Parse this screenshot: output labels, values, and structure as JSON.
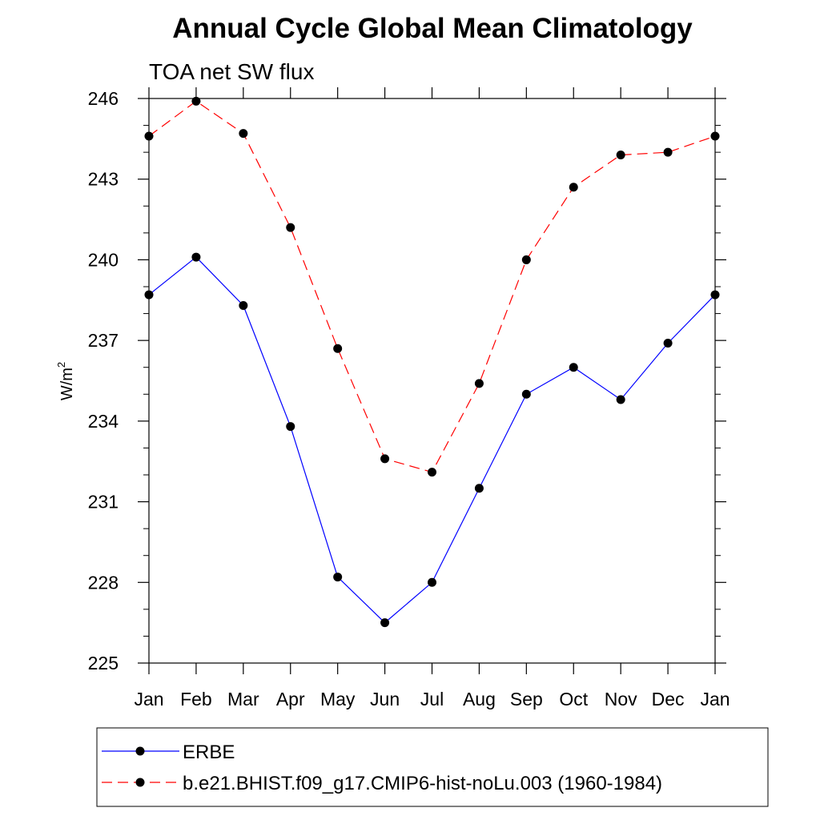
{
  "chart_data": {
    "type": "line",
    "title": "Annual Cycle Global Mean Climatology",
    "subtitle": "TOA net SW flux",
    "ylabel_base": "W/m",
    "ylabel_sup": "2",
    "xlabel": "",
    "categories": [
      "Jan",
      "Feb",
      "Mar",
      "Apr",
      "May",
      "Jun",
      "Jul",
      "Aug",
      "Sep",
      "Oct",
      "Nov",
      "Dec",
      "Jan"
    ],
    "ylim": [
      225,
      246
    ],
    "yticks": [
      "225",
      "228",
      "231",
      "234",
      "237",
      "240",
      "243",
      "246"
    ],
    "series": [
      {
        "name": "ERBE",
        "color": "#0000ff",
        "dash": "solid",
        "values": [
          238.7,
          240.1,
          238.3,
          233.8,
          228.2,
          226.5,
          228.0,
          231.5,
          235.0,
          236.0,
          234.8,
          236.9,
          238.7
        ]
      },
      {
        "name": "b.e21.BHIST.f09_g17.CMIP6-hist-noLu.003 (1960-1984)",
        "color": "#ff0000",
        "dash": "dashed",
        "values": [
          244.6,
          245.9,
          244.7,
          241.2,
          236.7,
          232.6,
          232.1,
          235.4,
          240.0,
          242.7,
          243.9,
          244.0,
          244.6
        ]
      }
    ],
    "grid": false,
    "legend_position": "bottom"
  }
}
